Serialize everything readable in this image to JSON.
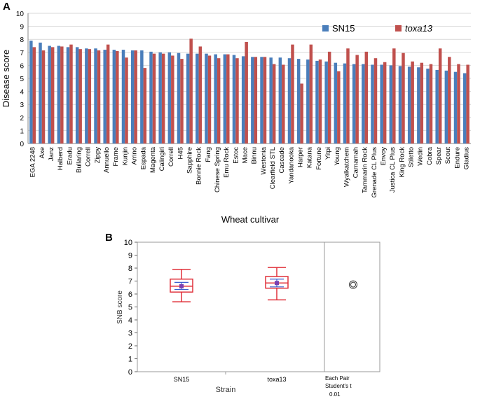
{
  "chart_data": [
    {
      "panel": "A",
      "type": "bar",
      "ylabel": "Disease score",
      "xlabel": "Wheat cultivar",
      "ylim": [
        0,
        10
      ],
      "yticks": [
        0,
        1,
        2,
        3,
        4,
        5,
        6,
        7,
        8,
        9,
        10
      ],
      "legend_position": "top-right",
      "categories": [
        "EGA 2248",
        "Axe",
        "Janz",
        "Halberd",
        "Eradu",
        "Bullaring",
        "Correll",
        "Zippy",
        "Annuello",
        "Frame",
        "Kunjin",
        "Arrino",
        "Espada",
        "Magenta",
        "Calingiri",
        "Correll",
        "H45",
        "Sapphire",
        "Bonnie Rock",
        "Fang",
        "Chinese Spring",
        "Emu Rock",
        "Estoc",
        "Mace",
        "Binnu",
        "Westonia",
        "Clearfield STL",
        "Cascade",
        "Yandanooka",
        "Harper",
        "Katana",
        "Fortune",
        "Yitpi",
        "Young",
        "Wyalkatchem",
        "Carnamah",
        "Tammarin Rock",
        "Grenade CL Plus",
        "Envoy",
        "Justica CL Plus",
        "King Rock",
        "Stiletto",
        "Wedin",
        "Cobra",
        "Spear",
        "Scout",
        "Endure",
        "Gladius"
      ],
      "series": [
        {
          "name": "SN15",
          "color": "#4a7ebb",
          "values": [
            7.9,
            7.75,
            7.5,
            7.5,
            7.4,
            7.4,
            7.3,
            7.3,
            7.2,
            7.2,
            7.2,
            7.15,
            7.15,
            7.05,
            7.0,
            7.0,
            6.95,
            6.9,
            6.9,
            6.9,
            6.85,
            6.85,
            6.8,
            6.7,
            6.65,
            6.65,
            6.6,
            6.6,
            6.55,
            6.5,
            6.45,
            6.35,
            6.3,
            6.2,
            6.15,
            6.1,
            6.1,
            6.05,
            6.05,
            6.0,
            5.95,
            5.9,
            5.85,
            5.75,
            5.65,
            5.6,
            5.5,
            5.4
          ]
        },
        {
          "name": "toxa13",
          "color": "#c0504d",
          "values": [
            7.4,
            7.15,
            7.4,
            7.45,
            7.6,
            7.25,
            7.25,
            7.15,
            7.6,
            7.1,
            6.6,
            7.15,
            5.8,
            6.9,
            6.9,
            6.75,
            6.5,
            8.05,
            7.45,
            6.75,
            6.55,
            6.85,
            6.55,
            7.8,
            6.65,
            6.65,
            6.1,
            6.05,
            7.6,
            4.6,
            7.6,
            6.45,
            7.05,
            5.55,
            7.3,
            6.8,
            7.05,
            6.55,
            6.25,
            7.3,
            6.95,
            6.3,
            6.2,
            6.1,
            7.3,
            6.65,
            6.1,
            6.05
          ]
        }
      ]
    },
    {
      "panel": "B",
      "type": "box",
      "ylabel": "SNB score",
      "xlabel": "Strain",
      "ylim": [
        0,
        10
      ],
      "yticks": [
        0,
        1,
        2,
        3,
        4,
        5,
        6,
        7,
        8,
        9,
        10
      ],
      "groups": [
        {
          "name": "SN15",
          "min": 5.4,
          "q1": 6.15,
          "median": 6.6,
          "q3": 7.15,
          "max": 7.9,
          "mean": 6.6,
          "ci": [
            6.35,
            6.9
          ]
        },
        {
          "name": "toxa13",
          "min": 5.55,
          "q1": 6.45,
          "median": 6.85,
          "q3": 7.35,
          "max": 8.05,
          "mean": 6.85,
          "ci": [
            6.55,
            7.15
          ]
        }
      ],
      "comparison": {
        "line1": "Each Pair",
        "line2": "Student's t",
        "line3": "0.01",
        "circle_center": 6.72
      }
    }
  ]
}
